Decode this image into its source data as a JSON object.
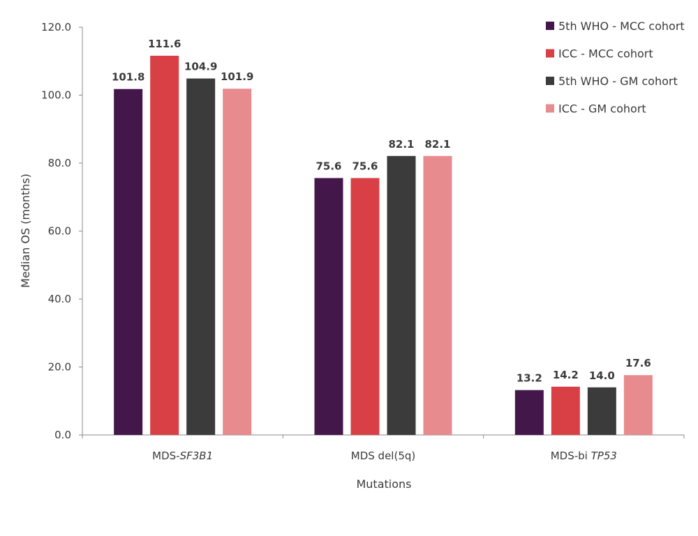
{
  "chart_data": {
    "type": "bar",
    "title": "",
    "xlabel": "Mutations",
    "ylabel": "Median OS (months)",
    "ylim": [
      0,
      120
    ],
    "yticks": [
      "0.0",
      "20.0",
      "40.0",
      "60.0",
      "80.0",
      "100.0",
      "120.0"
    ],
    "ytick_values": [
      0,
      20,
      40,
      60,
      80,
      100,
      120
    ],
    "grid": false,
    "legend_position": "top-right",
    "categories": [
      {
        "prefix": "MDS-",
        "italic": "SF3B1"
      },
      {
        "prefix": "MDS del(5q)",
        "italic": ""
      },
      {
        "prefix": "MDS-bi ",
        "italic": "TP53"
      }
    ],
    "series": [
      {
        "name": "5th WHO - MCC cohort",
        "color": "#44174a",
        "values": [
          101.8,
          75.6,
          13.2
        ],
        "labels": [
          "101.8",
          "75.6",
          "13.2"
        ]
      },
      {
        "name": "ICC - MCC cohort",
        "color": "#d94045",
        "values": [
          111.6,
          75.6,
          14.2
        ],
        "labels": [
          "111.6",
          "75.6",
          "14.2"
        ]
      },
      {
        "name": "5th WHO - GM cohort",
        "color": "#3b3b3b",
        "values": [
          104.9,
          82.1,
          14.0
        ],
        "labels": [
          "104.9",
          "82.1",
          "14.0"
        ]
      },
      {
        "name": "ICC - GM cohort",
        "color": "#e88b8e",
        "values": [
          101.9,
          82.1,
          17.6
        ],
        "labels": [
          "101.9",
          "82.1",
          "17.6"
        ]
      }
    ]
  }
}
